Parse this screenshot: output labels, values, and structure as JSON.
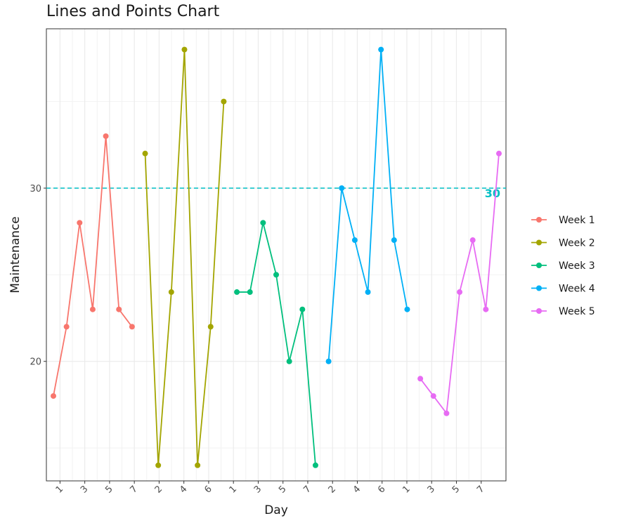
{
  "chart_data": {
    "type": "line",
    "title": "Lines and Points Chart",
    "xlabel": "Day",
    "ylabel": "Maintenance",
    "x_tick_labels": [
      "1",
      "3",
      "5",
      "7",
      "2",
      "4",
      "6",
      "1",
      "3",
      "5",
      "7",
      "2",
      "4",
      "6",
      "1",
      "3",
      "5",
      "7"
    ],
    "y_ticks": [
      20,
      30
    ],
    "ylim": [
      13.1,
      39.2
    ],
    "grid": true,
    "legend_position": "right",
    "reference_line": {
      "y": 30,
      "label": "30",
      "style": "dashed",
      "color": "#00BFC4"
    },
    "series": [
      {
        "name": "Week 1",
        "color": "#F8766D",
        "x": [
          1,
          2,
          3,
          4,
          5,
          6,
          7
        ],
        "values": [
          18,
          22,
          28,
          23,
          33,
          23,
          22
        ]
      },
      {
        "name": "Week 2",
        "color": "#A3A500",
        "x": [
          1,
          2,
          3,
          4,
          5,
          6,
          7
        ],
        "values": [
          32,
          14,
          24,
          38,
          14,
          22,
          35
        ]
      },
      {
        "name": "Week 3",
        "color": "#00BF7D",
        "x": [
          1,
          2,
          3,
          4,
          5,
          6,
          7
        ],
        "values": [
          24,
          24,
          28,
          25,
          20,
          23,
          14
        ]
      },
      {
        "name": "Week 4",
        "color": "#00B0F6",
        "x": [
          1,
          2,
          3,
          4,
          5,
          6,
          7
        ],
        "values": [
          20,
          30,
          27,
          24,
          38,
          27,
          23
        ]
      },
      {
        "name": "Week 5",
        "color": "#E76BF3",
        "x": [
          1,
          2,
          3,
          4,
          5,
          6,
          7
        ],
        "values": [
          19,
          18,
          17,
          24,
          27,
          23,
          32
        ]
      }
    ]
  }
}
